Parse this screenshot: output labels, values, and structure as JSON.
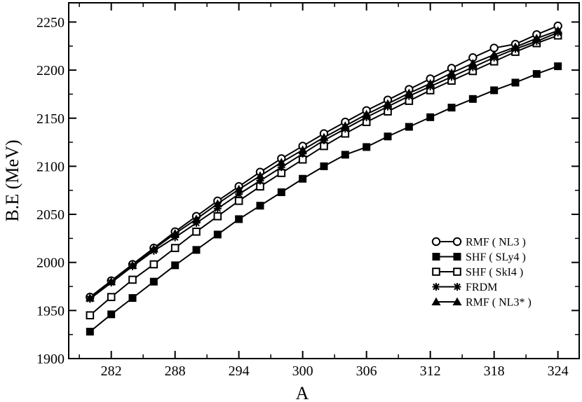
{
  "chart_data": {
    "type": "line",
    "title": "",
    "xlabel": "A",
    "ylabel": "B.E (MeV)",
    "xlim": [
      278,
      326
    ],
    "ylim": [
      1900,
      2270
    ],
    "xticks": [
      282,
      288,
      294,
      300,
      306,
      312,
      318,
      324
    ],
    "yticks": [
      1900,
      1950,
      2000,
      2050,
      2100,
      2150,
      2200,
      2250
    ],
    "grid": false,
    "legend_position": "bottom-right",
    "x": [
      280,
      282,
      284,
      286,
      288,
      290,
      292,
      294,
      296,
      298,
      300,
      302,
      304,
      306,
      308,
      310,
      312,
      314,
      316,
      318,
      320,
      322,
      324
    ],
    "series": [
      {
        "name": "RMF ( NL3 )",
        "marker": "open-circle",
        "values": [
          1964,
          1981,
          1998,
          2015,
          2032,
          2048,
          2064,
          2079,
          2094,
          2108,
          2121,
          2134,
          2146,
          2158,
          2169,
          2180,
          2191,
          2202,
          2213,
          2223,
          2227,
          2237,
          2246
        ]
      },
      {
        "name": "SHF ( SLy4 )",
        "marker": "filled-square",
        "values": [
          1928,
          1946,
          1963,
          1980,
          1997,
          2013,
          2029,
          2045,
          2059,
          2073,
          2087,
          2100,
          2112,
          2120,
          2131,
          2141,
          2151,
          2161,
          2170,
          2179,
          2187,
          2196,
          2204
        ]
      },
      {
        "name": "SHF ( SkI4 )",
        "marker": "open-square",
        "values": [
          1945,
          1964,
          1982,
          1998,
          2015,
          2032,
          2048,
          2064,
          2079,
          2093,
          2107,
          2121,
          2134,
          2146,
          2157,
          2168,
          2179,
          2189,
          2199,
          2209,
          2219,
          2228,
          2236
        ]
      },
      {
        "name": "FRDM",
        "marker": "star",
        "values": [
          1962,
          1979,
          1996,
          2012,
          2026,
          2041,
          2056,
          2071,
          2085,
          2099,
          2113,
          2127,
          2139,
          2151,
          2162,
          2173,
          2183,
          2193,
          2203,
          2213,
          2222,
          2230,
          2239
        ]
      },
      {
        "name": "RMF ( NL3* )",
        "marker": "filled-triangle",
        "values": [
          1963,
          1980,
          1997,
          2014,
          2030,
          2045,
          2061,
          2076,
          2090,
          2104,
          2117,
          2130,
          2142,
          2154,
          2165,
          2176,
          2186,
          2197,
          2207,
          2216,
          2224,
          2233,
          2241
        ]
      }
    ]
  }
}
